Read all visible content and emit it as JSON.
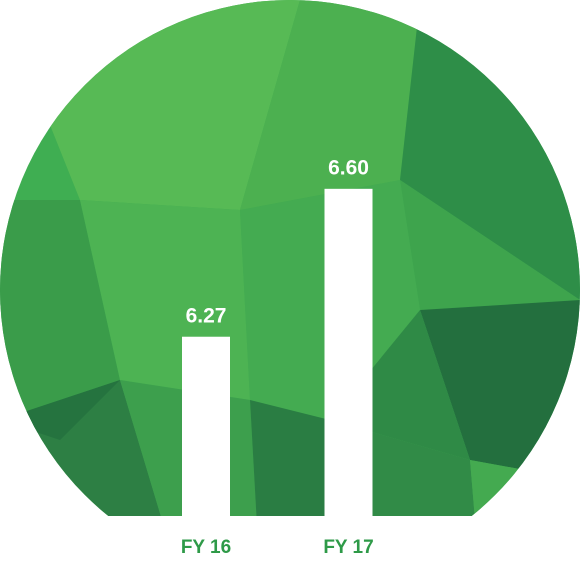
{
  "chart_data": {
    "type": "bar",
    "categories": [
      "FY 16",
      "FY 17"
    ],
    "values": [
      6.27,
      6.6
    ],
    "value_labels": [
      "6.27",
      "6.60"
    ],
    "color": "#ffffff",
    "ylim": [
      5.87,
      6.7
    ]
  }
}
